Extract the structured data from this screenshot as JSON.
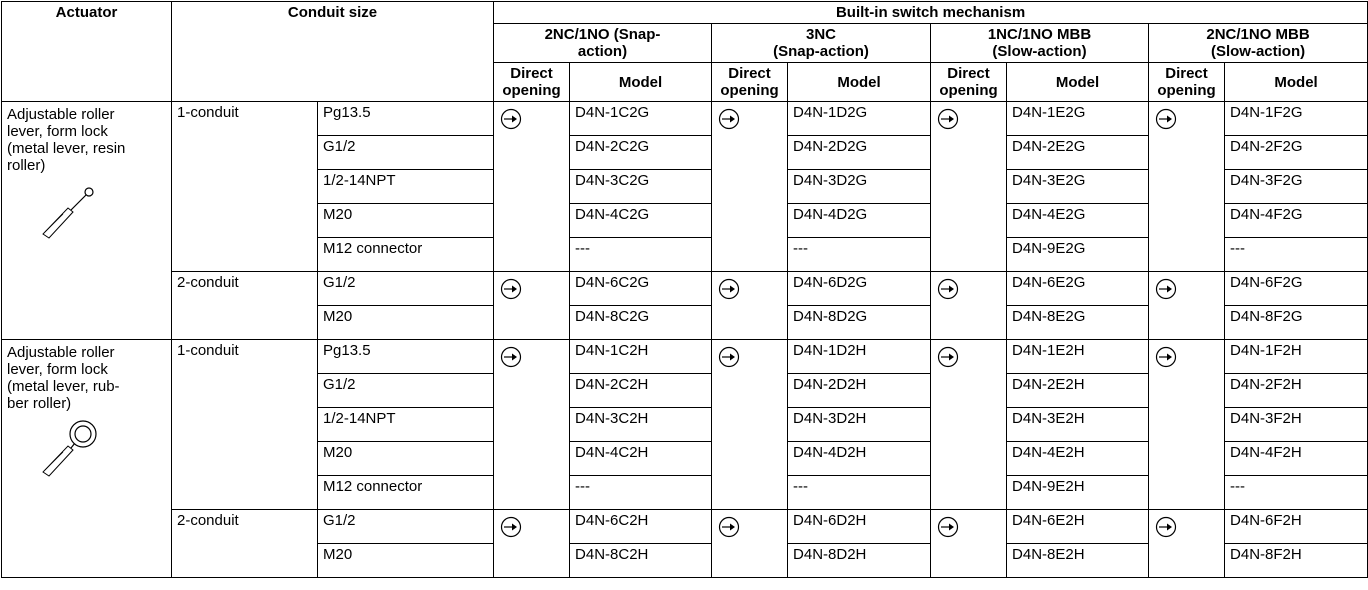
{
  "header": {
    "actuator": "Actuator",
    "conduit_size": "Conduit size",
    "mechanism": "Built-in switch mechanism",
    "mechanisms": [
      [
        "2NC/1NO (Snap-",
        "action)"
      ],
      [
        "3NC",
        "(Snap-action)"
      ],
      [
        "1NC/1NO MBB",
        "(Slow-action)"
      ],
      [
        "2NC/1NO MBB",
        "(Slow-action)"
      ]
    ],
    "columns": [
      [
        "Direct",
        "opening"
      ],
      [
        "Model"
      ],
      [
        "Direct",
        "opening"
      ],
      [
        "Model"
      ],
      [
        "Direct",
        "opening"
      ],
      [
        "Model"
      ],
      [
        "Direct",
        "opening"
      ],
      [
        "Model"
      ]
    ]
  },
  "groups": [
    {
      "actuator": [
        "Adjustable roller",
        "lever, form lock",
        "(metal lever, resin",
        "roller)"
      ],
      "conduits": [
        {
          "type": "1-conduit",
          "sizes": [
            {
              "size": "Pg13.5",
              "models": [
                "D4N-1C2G",
                "D4N-1D2G",
                "D4N-1E2G",
                "D4N-1F2G"
              ]
            },
            {
              "size": "G1/2",
              "models": [
                "D4N-2C2G",
                "D4N-2D2G",
                "D4N-2E2G",
                "D4N-2F2G"
              ]
            },
            {
              "size": "1/2-14NPT",
              "models": [
                "D4N-3C2G",
                "D4N-3D2G",
                "D4N-3E2G",
                "D4N-3F2G"
              ]
            },
            {
              "size": "M20",
              "models": [
                "D4N-4C2G",
                "D4N-4D2G",
                "D4N-4E2G",
                "D4N-4F2G"
              ]
            },
            {
              "size": "M12 connector",
              "models": [
                "---",
                "---",
                "D4N-9E2G",
                "---"
              ]
            }
          ]
        },
        {
          "type": "2-conduit",
          "sizes": [
            {
              "size": "G1/2",
              "models": [
                "D4N-6C2G",
                "D4N-6D2G",
                "D4N-6E2G",
                "D4N-6F2G"
              ]
            },
            {
              "size": "M20",
              "models": [
                "D4N-8C2G",
                "D4N-8D2G",
                "D4N-8E2G",
                "D4N-8F2G"
              ]
            }
          ]
        }
      ]
    },
    {
      "actuator": [
        "Adjustable roller",
        "lever, form lock",
        "(metal lever, rub-",
        "ber roller)"
      ],
      "conduits": [
        {
          "type": "1-conduit",
          "sizes": [
            {
              "size": "Pg13.5",
              "models": [
                "D4N-1C2H",
                "D4N-1D2H",
                "D4N-1E2H",
                "D4N-1F2H"
              ]
            },
            {
              "size": "G1/2",
              "models": [
                "D4N-2C2H",
                "D4N-2D2H",
                "D4N-2E2H",
                "D4N-2F2H"
              ]
            },
            {
              "size": "1/2-14NPT",
              "models": [
                "D4N-3C2H",
                "D4N-3D2H",
                "D4N-3E2H",
                "D4N-3F2H"
              ]
            },
            {
              "size": "M20",
              "models": [
                "D4N-4C2H",
                "D4N-4D2H",
                "D4N-4E2H",
                "D4N-4F2H"
              ]
            },
            {
              "size": "M12 connector",
              "models": [
                "---",
                "---",
                "D4N-9E2H",
                "---"
              ]
            }
          ]
        },
        {
          "type": "2-conduit",
          "sizes": [
            {
              "size": "G1/2",
              "models": [
                "D4N-6C2H",
                "D4N-6D2H",
                "D4N-6E2H",
                "D4N-6F2H"
              ]
            },
            {
              "size": "M20",
              "models": [
                "D4N-8C2H",
                "D4N-8D2H",
                "D4N-8E2H",
                "D4N-8F2H"
              ]
            }
          ]
        }
      ]
    }
  ]
}
